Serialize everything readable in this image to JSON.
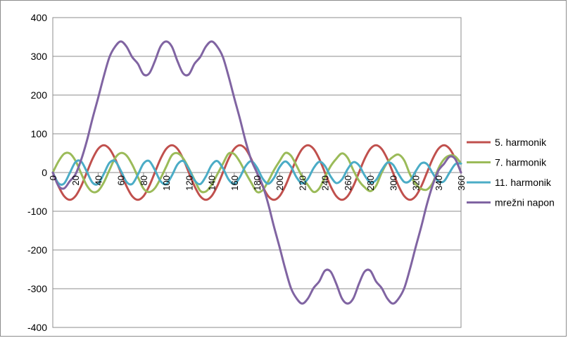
{
  "chart_data": {
    "type": "line",
    "title": "",
    "xlabel": "",
    "ylabel": "",
    "xlim": [
      0,
      360
    ],
    "ylim": [
      -400,
      400
    ],
    "x_ticks": [
      0,
      20,
      40,
      60,
      80,
      100,
      120,
      140,
      160,
      180,
      200,
      220,
      240,
      260,
      280,
      300,
      320,
      340,
      360
    ],
    "y_ticks": [
      400,
      300,
      200,
      100,
      0,
      -100,
      -200,
      -300,
      -400
    ],
    "grid": "horizontal",
    "legend": "right",
    "x_step": 5,
    "series": [
      {
        "name": "5. harmonik",
        "color": "#c0504d",
        "values": [
          0,
          -35.25,
          -61.05,
          -70.49,
          -61.05,
          -35.25,
          0,
          35.25,
          61.05,
          70.49,
          61.05,
          35.25,
          0,
          -35.25,
          -61.05,
          -70.49,
          -61.05,
          -35.25,
          0,
          35.25,
          61.05,
          70.49,
          61.05,
          35.25,
          0,
          -35.25,
          -61.05,
          -70.49,
          -61.05,
          -35.25,
          0,
          35.25,
          61.05,
          70.49,
          61.05,
          35.25,
          0,
          -35.25,
          -61.05,
          -70.49,
          -61.05,
          -35.25,
          0,
          35.25,
          61.05,
          70.49,
          61.05,
          35.25,
          0,
          -35.25,
          -61.05,
          -70.49,
          -61.05,
          -35.25,
          0,
          35.25,
          61.05,
          70.49,
          61.05,
          35.25,
          0,
          -35.25,
          -61.05,
          -70.49,
          -61.05,
          -35.25,
          0,
          35.25,
          61.05,
          70.49,
          61.05,
          35.25,
          0
        ]
      },
      {
        "name": "7. harmonik",
        "color": "#9bbb59",
        "values": [
          0,
          28.63,
          48.29,
          49.22,
          30.45,
          -2.21,
          -33.45,
          -49.9,
          -47.11,
          -25.67,
          6.57,
          37.53,
          50.35,
          43.99,
          20.75,
          -10.93,
          -41.42,
          -50.44,
          -40.55,
          -15.34,
          14.89,
          44.54,
          49.94,
          36.54,
          10.45,
          -18.75,
          -47.19,
          -48.99,
          -32.14,
          -5.07,
          22.47,
          48.86,
          47.6,
          27.46,
          -0.37,
          -26.05,
          -49.9,
          -45.78,
          -22.47,
          5.81,
          29.41,
          50.35,
          43.55,
          17.24,
          -11.07,
          -32.53,
          -50.21,
          -40.96,
          -11.83,
          16.21,
          35.44,
          49.41,
          37.95,
          6.36,
          -21.17,
          -38.06,
          -48.08,
          -34.61,
          -0.88,
          25.8,
          40.36,
          46.3,
          30.97,
          -4.65,
          -30.13,
          -42.32,
          -43.93,
          -27.09,
          10.02,
          34.09,
          43.94,
          41.12,
          23.0
        ]
      },
      {
        "name": "11. harmonik",
        "color": "#4bacc6",
        "values": [
          0,
          -27.75,
          -28.27,
          -1.16,
          26.93,
          28.7,
          2.32,
          -26.06,
          -29.07,
          -3.47,
          25.15,
          29.37,
          4.61,
          -24.19,
          -29.61,
          -5.74,
          23.2,
          29.77,
          6.85,
          -22.16,
          -29.87,
          -7.95,
          21.08,
          29.9,
          9.04,
          -19.97,
          -29.86,
          -10.11,
          18.82,
          29.75,
          11.16,
          -17.64,
          -29.58,
          -12.19,
          16.42,
          29.34,
          13.2,
          -15.18,
          -29.04,
          -14.19,
          13.91,
          28.67,
          15.15,
          -12.62,
          -28.24,
          -16.09,
          11.31,
          27.74,
          17.0,
          -9.98,
          -27.19,
          -17.88,
          8.64,
          26.58,
          18.73,
          -7.29,
          -25.91,
          -19.55,
          5.93,
          25.19,
          20.34,
          -4.57,
          -24.41,
          -21.1,
          3.2,
          23.58,
          21.82,
          -1.84,
          -22.7,
          -22.51,
          0.48,
          21.77,
          23.16
        ]
      },
      {
        "name": "mrežni napon",
        "color": "#8064a2",
        "values": [
          0,
          -34.37,
          -41.03,
          -22.43,
          -4.7,
          32.73,
          81.28,
          139.16,
          192.8,
          248.66,
          298.18,
          325.2,
          338.43,
          325.2,
          298.18,
          280.95,
          253.52,
          255.82,
          287.3,
          325.2,
          338.43,
          325.2,
          287.3,
          255.82,
          253.52,
          280.95,
          298.18,
          325.2,
          338.43,
          325.2,
          298.18,
          248.66,
          192.8,
          139.16,
          81.28,
          32.73,
          0,
          -32.73,
          -81.28,
          -139.16,
          -192.8,
          -248.66,
          -298.18,
          -325.2,
          -338.43,
          -325.2,
          -298.18,
          -280.95,
          -253.52,
          -255.82,
          -287.3,
          -325.2,
          -338.43,
          -325.2,
          -287.3,
          -255.82,
          -253.52,
          -280.95,
          -298.18,
          -325.2,
          -338.43,
          -325.2,
          -298.18,
          -248.66,
          -192.8,
          -139.16,
          -81.28,
          -32.73,
          4.7,
          22.43,
          41.03,
          34.37,
          0
        ]
      }
    ]
  }
}
